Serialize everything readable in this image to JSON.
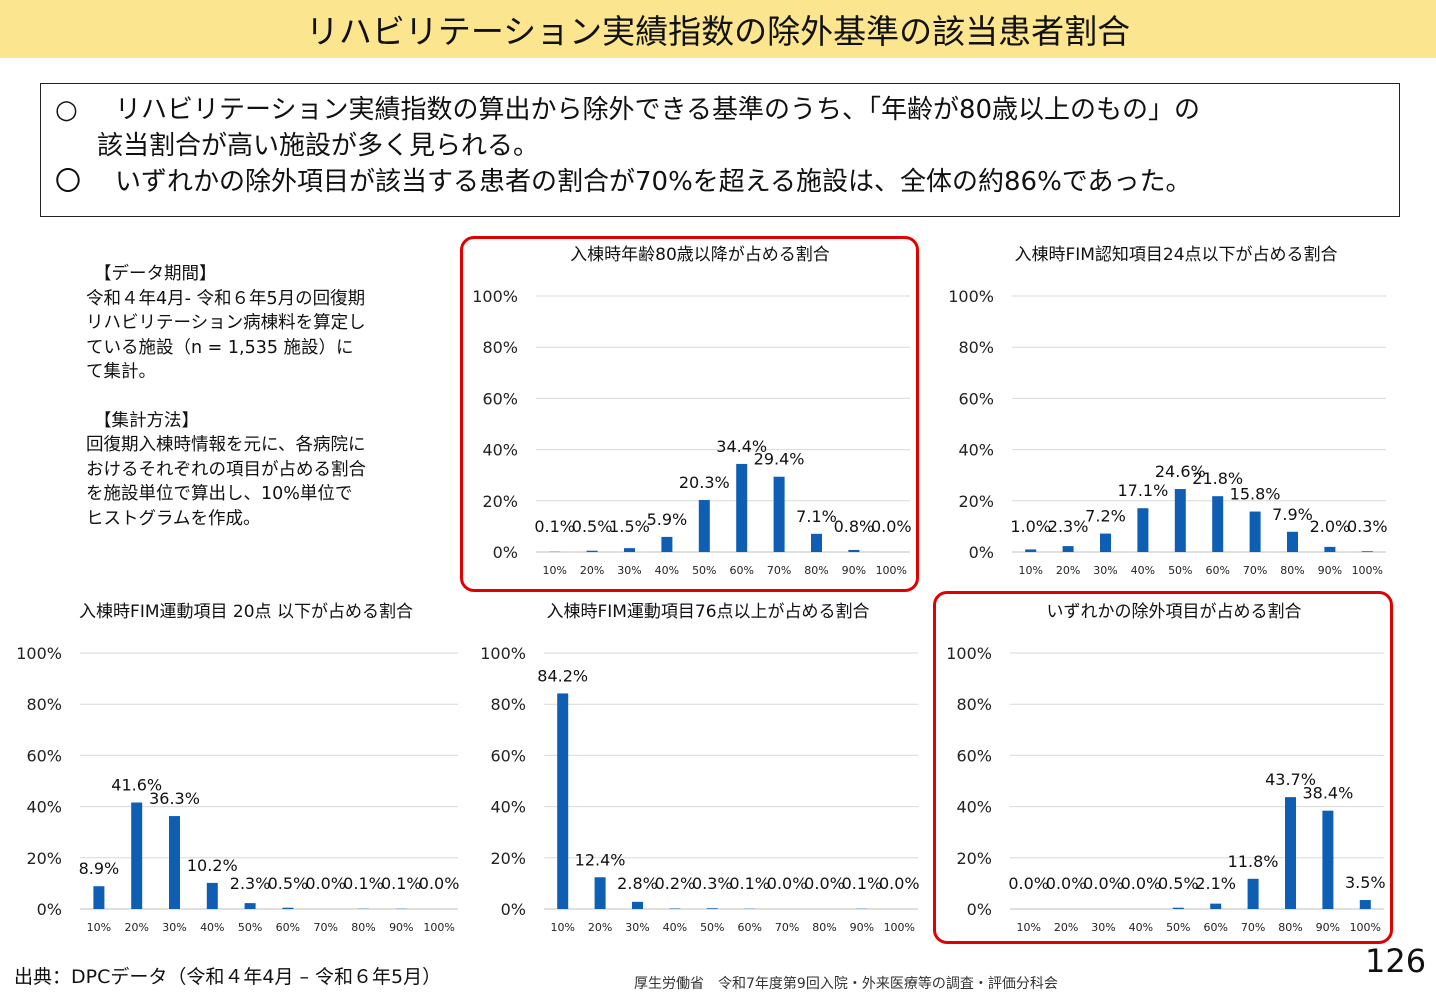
{
  "title": "リハビリテーション実績指数の除外基準の該当患者割合",
  "summary": {
    "bullet1": "○",
    "line1": "リハビリテーション実績指数の算出から除外できる基準のうち、「年齢が80歳以上のもの」の",
    "line1b": "該当割合が高い施設が多く見られる。",
    "bullet2": "〇",
    "line2": "いずれかの除外項目が該当する患者の割合が70%を超える施設は、全体の約86%であった。"
  },
  "notes": {
    "period_head": "【データ期間】",
    "period_lines": [
      "令和４年4月- 令和６年5月の回復期",
      "リハビリテーション病棟料を算定し",
      "ている施設（n = 1,535 施設）に",
      "て集計。"
    ],
    "method_head": "【集計方法】",
    "method_lines": [
      "回復期入棟時情報を元に、各病院に",
      "おけるそれぞれの項目が占める割合",
      "を施設単位で算出し、10%単位で",
      "ヒストグラムを作成。"
    ]
  },
  "colors": {
    "bar": "#0e5fb4",
    "highlight": "#e00000",
    "title_bg": "#fbe58e",
    "grid": "#d9d9d9"
  },
  "chart_data": [
    {
      "type": "bar",
      "title": "入棟時年齢80歳以降が占める割合",
      "categories": [
        "10%",
        "20%",
        "30%",
        "40%",
        "50%",
        "60%",
        "70%",
        "80%",
        "90%",
        "100%"
      ],
      "values": [
        0.1,
        0.5,
        1.5,
        5.9,
        20.3,
        34.4,
        29.4,
        7.1,
        0.8,
        0.0
      ],
      "labels": [
        "0.1%",
        "0.5%",
        "1.5%",
        "5.9%",
        "20.3%",
        "34.4%",
        "29.4%",
        "7.1%",
        "0.8%",
        "0.0%"
      ],
      "yticks": [
        "0%",
        "20%",
        "40%",
        "60%",
        "80%",
        "100%"
      ],
      "ylim": [
        0,
        100
      ],
      "highlighted": true
    },
    {
      "type": "bar",
      "title": "入棟時FIM認知項目24点以下が占める割合",
      "categories": [
        "10%",
        "20%",
        "30%",
        "40%",
        "50%",
        "60%",
        "70%",
        "80%",
        "90%",
        "100%"
      ],
      "values": [
        1.0,
        2.3,
        7.2,
        17.1,
        24.6,
        21.8,
        15.8,
        7.9,
        2.0,
        0.3
      ],
      "labels": [
        "1.0%",
        "2.3%",
        "7.2%",
        "17.1%",
        "24.6%",
        "21.8%",
        "15.8%",
        "7.9%",
        "2.0%",
        "0.3%"
      ],
      "yticks": [
        "0%",
        "20%",
        "40%",
        "60%",
        "80%",
        "100%"
      ],
      "ylim": [
        0,
        100
      ],
      "highlighted": false
    },
    {
      "type": "bar",
      "title": "入棟時FIM運動項目 20点 以下が占める割合",
      "categories": [
        "10%",
        "20%",
        "30%",
        "40%",
        "50%",
        "60%",
        "70%",
        "80%",
        "90%",
        "100%"
      ],
      "values": [
        8.9,
        41.6,
        36.3,
        10.2,
        2.3,
        0.5,
        0.0,
        0.1,
        0.1,
        0.0
      ],
      "labels": [
        "8.9%",
        "41.6%",
        "36.3%",
        "10.2%",
        "2.3%",
        "0.5%",
        "0.0%",
        "0.1%",
        "0.1%",
        "0.0%"
      ],
      "yticks": [
        "0%",
        "20%",
        "40%",
        "60%",
        "80%",
        "100%"
      ],
      "ylim": [
        0,
        100
      ],
      "highlighted": false
    },
    {
      "type": "bar",
      "title": "入棟時FIM運動項目76点以上が占める割合",
      "categories": [
        "10%",
        "20%",
        "30%",
        "40%",
        "50%",
        "60%",
        "70%",
        "80%",
        "90%",
        "100%"
      ],
      "values": [
        84.2,
        12.4,
        2.8,
        0.2,
        0.3,
        0.1,
        0.0,
        0.0,
        0.1,
        0.0
      ],
      "labels": [
        "84.2%",
        "12.4%",
        "2.8%",
        "0.2%",
        "0.3%",
        "0.1%",
        "0.0%",
        "0.0%",
        "0.1%",
        "0.0%"
      ],
      "yticks": [
        "0%",
        "20%",
        "40%",
        "60%",
        "80%",
        "100%"
      ],
      "ylim": [
        0,
        100
      ],
      "highlighted": false
    },
    {
      "type": "bar",
      "title": "いずれかの除外項目が占める割合",
      "categories": [
        "10%",
        "20%",
        "30%",
        "40%",
        "50%",
        "60%",
        "70%",
        "80%",
        "90%",
        "100%"
      ],
      "values": [
        0.0,
        0.0,
        0.0,
        0.0,
        0.5,
        2.1,
        11.8,
        43.7,
        38.4,
        3.5
      ],
      "labels": [
        "0.0%",
        "0.0%",
        "0.0%",
        "0.0%",
        "0.5%",
        "2.1%",
        "11.8%",
        "43.7%",
        "38.4%",
        "3.5%"
      ],
      "yticks": [
        "0%",
        "20%",
        "40%",
        "60%",
        "80%",
        "100%"
      ],
      "ylim": [
        0,
        100
      ],
      "highlighted": true
    }
  ],
  "footer": {
    "source": "出典：DPCデータ（令和４年4月 – 令和６年5月）",
    "org": "厚生労働省　令和7年度第9回入院・外来医療等の調査・評価分科会",
    "page": "126"
  }
}
